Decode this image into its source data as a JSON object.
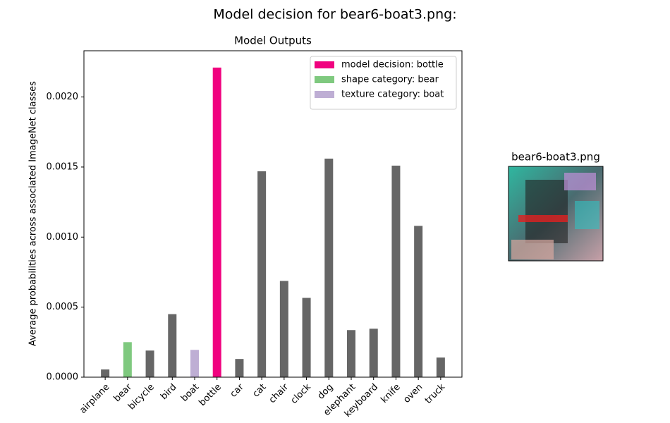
{
  "chart_data": {
    "type": "bar",
    "title": "Model decision for bear6-boat3.png:",
    "subtitle": "Model Outputs",
    "y_label": "Average probabilities across associated ImageNet classes",
    "categories": [
      "airplane",
      "bear",
      "bicycle",
      "bird",
      "boat",
      "bottle",
      "car",
      "cat",
      "chair",
      "clock",
      "dog",
      "elephant",
      "keyboard",
      "knife",
      "oven",
      "truck"
    ],
    "values": [
      5.5e-05,
      0.00025,
      0.00019,
      0.00045,
      0.000195,
      0.00221,
      0.00013,
      0.00147,
      0.000687,
      0.000566,
      0.00156,
      0.000336,
      0.000346,
      0.00151,
      0.00108,
      0.00014
    ],
    "colors": [
      "#666666",
      "#7fc97f",
      "#666666",
      "#666666",
      "#beaed4",
      "#f0027f",
      "#666666",
      "#666666",
      "#666666",
      "#666666",
      "#666666",
      "#666666",
      "#666666",
      "#666666",
      "#666666",
      "#666666"
    ],
    "ylim": [
      0,
      0.00233
    ],
    "yticks": [
      {
        "value": 0,
        "label": "0.0000"
      },
      {
        "value": 0.0005,
        "label": "0.0005"
      },
      {
        "value": 0.001,
        "label": "0.0010"
      },
      {
        "value": 0.0015,
        "label": "0.0015"
      },
      {
        "value": 0.002,
        "label": "0.0020"
      }
    ],
    "grid": false,
    "legend": [
      {
        "name": "model decision: bottle",
        "color": "#f0027f"
      },
      {
        "name": "shape category: bear",
        "color": "#7fc97f"
      },
      {
        "name": "texture category: boat",
        "color": "#beaed4"
      }
    ],
    "legend_position": "upper right",
    "image_title": "bear6-boat3.png"
  }
}
